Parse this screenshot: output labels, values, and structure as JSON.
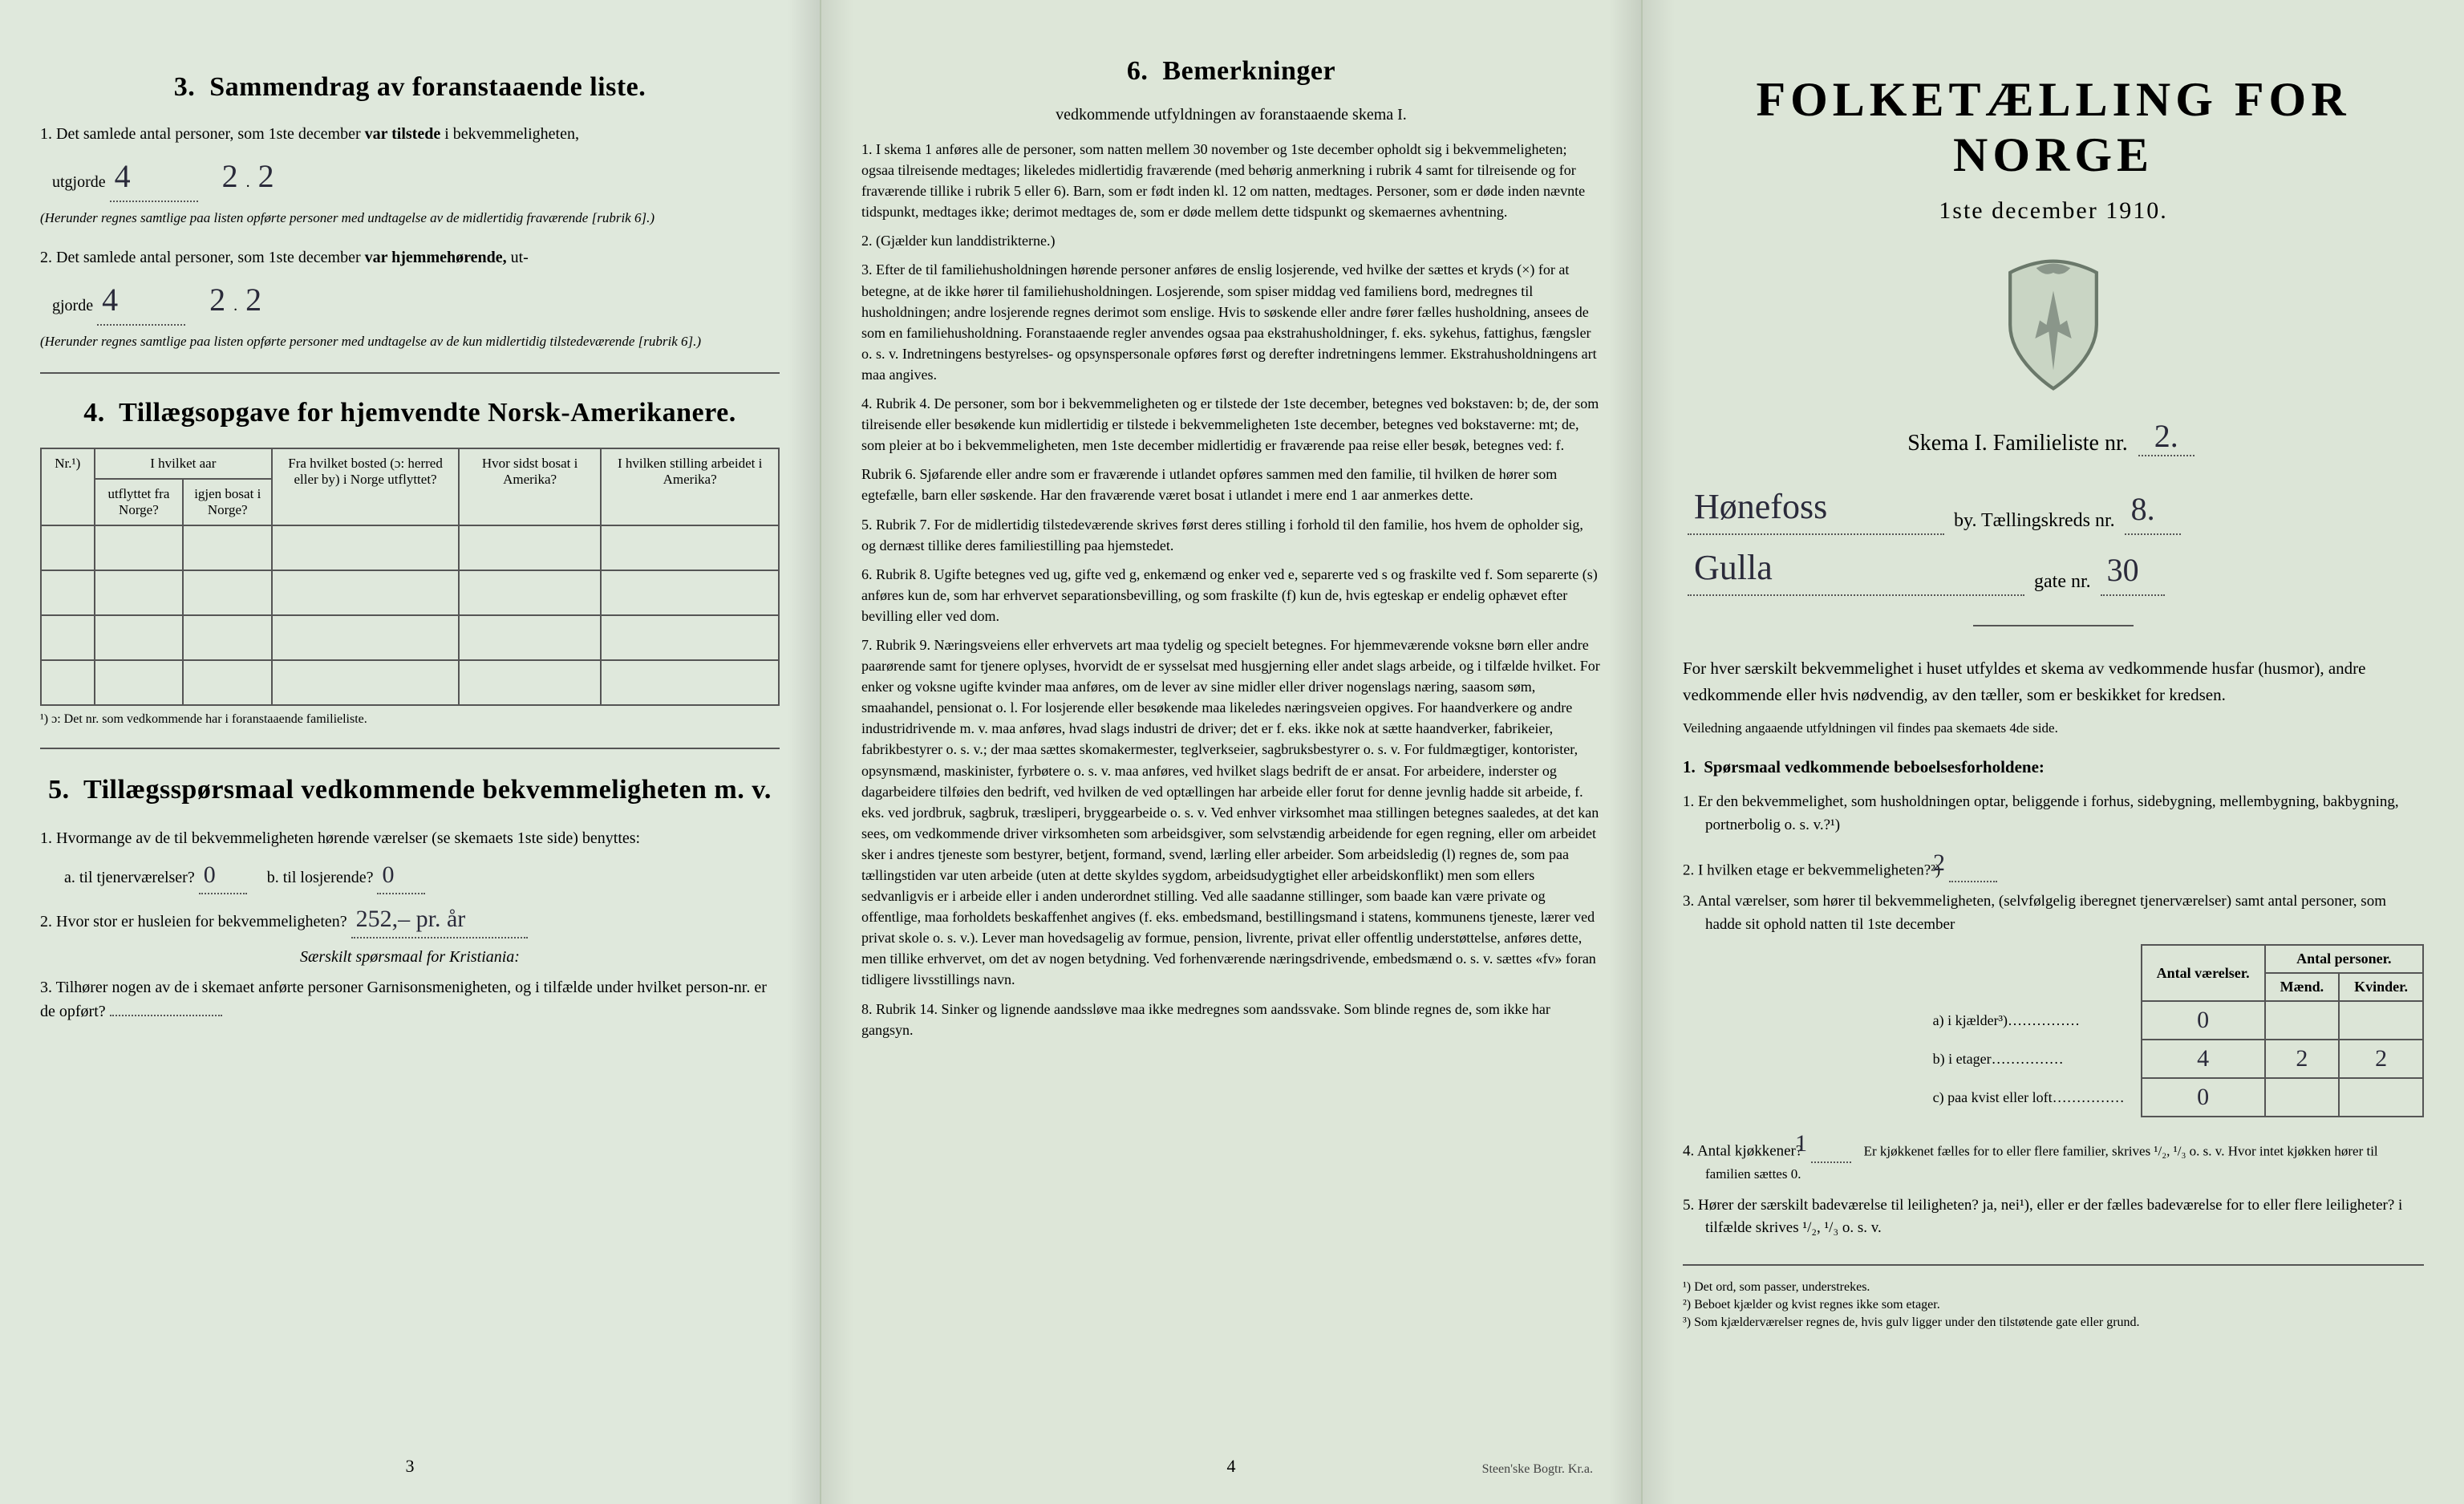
{
  "colors": {
    "paper": "#dfe8dc",
    "ink": "#222222",
    "rule": "#555555",
    "handwriting": "#2a2a3a",
    "fold_shadow": "rgba(0,0,0,0.09)"
  },
  "typography": {
    "body_pt": 20,
    "small_pt": 17,
    "tiny_pt": 15,
    "section_heading_pt": 34,
    "right_title_pt": 60,
    "right_subtitle_pt": 30,
    "hand_pt": 40
  },
  "left": {
    "section3": {
      "num": "3.",
      "title": "Sammendrag av foranstaaende liste.",
      "q1_pre": "1.  Det samlede antal personer, som 1ste december",
      "q1_bold": "var tilstede",
      "q1_post": "i bekvemmeligheten,",
      "q1_line2": "utgjorde",
      "q1_total_hand": "4",
      "q1_m_hand": "2",
      "q1_k_hand": "2",
      "q1_note": "(Herunder regnes samtlige paa listen opførte personer med undtagelse av de midlertidig fraværende [rubrik 6].)",
      "q2_pre": "2.  Det samlede antal personer, som 1ste december",
      "q2_bold": "var hjemmehørende,",
      "q2_post": "ut-",
      "q2_line2": "gjorde",
      "q2_total_hand": "4",
      "q2_m_hand": "2",
      "q2_k_hand": "2",
      "q2_note": "(Herunder regnes samtlige paa listen opførte personer med undtagelse av de kun midlertidig tilstedeværende [rubrik 6].)"
    },
    "section4": {
      "num": "4.",
      "title": "Tillægsopgave for hjemvendte Norsk-Amerikanere.",
      "headers": {
        "nr": "Nr.¹)",
        "col1a": "I hvilket aar",
        "col1a_sub1": "utflyttet fra Norge?",
        "col1a_sub2": "igjen bosat i Norge?",
        "col2": "Fra hvilket bosted (ɔ: herred eller by) i Norge utflyttet?",
        "col3": "Hvor sidst bosat i Amerika?",
        "col4": "I hvilken stilling arbeidet i Amerika?"
      },
      "blank_rows": 4,
      "footnote": "¹) ɔ: Det nr. som vedkommende har i foranstaaende familieliste."
    },
    "section5": {
      "num": "5.",
      "title": "Tillægsspørsmaal vedkommende bekvemmeligheten m. v.",
      "q1": "1.  Hvormange av de til bekvemmeligheten hørende værelser (se skemaets 1ste side) benyttes:",
      "q1a_label": "a.  til tjenerværelser?",
      "q1a_hand": "0",
      "q1b_label": "b.  til losjerende?",
      "q1b_hand": "0",
      "q2_label": "2.  Hvor stor er husleien for bekvemmeligheten?",
      "q2_hand": "252,– pr. år",
      "kristiania": "Særskilt spørsmaal for Kristiania:",
      "q3": "3.  Tilhører nogen av de i skemaet anførte personer Garnisonsmenigheten, og i tilfælde under hvilket person-nr. er de opført?"
    },
    "pagenum": "3"
  },
  "mid": {
    "heading_num": "6.",
    "heading": "Bemerkninger",
    "subcaption": "vedkommende utfyldningen av foranstaaende skema I.",
    "items": [
      "1.  I skema 1 anføres alle de personer, som natten mellem 30 november og 1ste december opholdt sig i bekvemmeligheten; ogsaa tilreisende medtages; likeledes midlertidig fraværende (med behørig anmerkning i rubrik 4 samt for tilreisende og for fraværende tillike i rubrik 5 eller 6). Barn, som er født inden kl. 12 om natten, medtages. Personer, som er døde inden nævnte tidspunkt, medtages ikke; derimot medtages de, som er døde mellem dette tidspunkt og skemaernes avhentning.",
      "2.  (Gjælder kun landdistrikterne.)",
      "3.  Efter de til familiehusholdningen hørende personer anføres de enslig losjerende, ved hvilke der sættes et kryds (×) for at betegne, at de ikke hører til familiehusholdningen. Losjerende, som spiser middag ved familiens bord, medregnes til husholdningen; andre losjerende regnes derimot som enslige. Hvis to søskende eller andre fører fælles husholdning, ansees de som en familiehusholdning.    Foranstaaende regler anvendes ogsaa paa ekstrahusholdninger, f. eks. sykehus, fattighus, fængsler o. s. v. Indretningens bestyrelses- og opsynspersonale opføres først og derefter indretningens lemmer. Ekstrahusholdningens art maa angives.",
      "4.  Rubrik 4.  De personer, som bor i bekvemmeligheten og er tilstede der 1ste december, betegnes ved bokstaven: b; de, der som tilreisende eller besøkende kun midlertidig er tilstede i bekvemmeligheten 1ste december, betegnes ved bokstaverne: mt; de, som pleier at bo i bekvemmeligheten, men 1ste december midlertidig er fraværende paa reise eller besøk, betegnes ved: f.",
      "Rubrik 6.  Sjøfarende eller andre som er fraværende i utlandet opføres sammen med den familie, til hvilken de hører som egtefælle, barn eller søskende.    Har den fraværende været bosat i utlandet i mere end 1 aar anmerkes dette.",
      "5.  Rubrik 7.  For de midlertidig tilstedeværende skrives først deres stilling i forhold til den familie, hos hvem de opholder sig, og dernæst tillike deres familiestilling paa hjemstedet.",
      "6.  Rubrik 8.  Ugifte betegnes ved ug, gifte ved g, enkemænd og enker ved e, separerte ved s og fraskilte ved f. Som separerte (s) anføres kun de, som har erhvervet separationsbevilling, og som fraskilte (f) kun de, hvis egteskap er endelig ophævet efter bevilling eller ved dom.",
      "7.  Rubrik 9.  Næringsveiens eller erhvervets art maa tydelig og specielt betegnes.    For hjemmeværende voksne børn eller andre paarørende samt for tjenere oplyses, hvorvidt de er sysselsat med husgjerning eller andet slags arbeide, og i tilfælde hvilket. For enker og voksne ugifte kvinder maa anføres, om de lever av sine midler eller driver nogenslags næring, saasom søm, smaahandel, pensionat o. l.    For losjerende eller besøkende maa likeledes næringsveien opgives.    For haandverkere og andre industridrivende m. v. maa anføres, hvad slags industri de driver; det er f. eks. ikke nok at sætte haandverker, fabrikeier, fabrikbestyrer o. s. v.; der maa sættes skomakermester, teglverkseier, sagbruksbestyrer o. s. v.    For fuldmægtiger, kontorister, opsynsmænd, maskinister, fyrbøtere o. s. v. maa anføres, ved hvilket slags bedrift de er ansat.    For arbeidere, inderster og dagarbeidere tilføies den bedrift, ved hvilken de ved optællingen har arbeide eller forut for denne jevnlig hadde sit arbeide, f. eks. ved jordbruk, sagbruk, træsliperi, bryggearbeide o. s. v.    Ved enhver virksomhet maa stillingen betegnes saaledes, at det kan sees, om vedkommende driver virksomheten som arbeidsgiver, som selvstændig arbeidende for egen regning, eller om arbeidet sker i andres tjeneste som bestyrer, betjent, formand, svend, lærling eller arbeider.    Som arbeidsledig (l) regnes de, som paa tællingstiden var uten arbeide (uten at dette skyldes sygdom, arbeidsudygtighet eller arbeidskonflikt) men som ellers sedvanligvis er i arbeide eller i anden underordnet stilling.    Ved alle saadanne stillinger, som baade kan være private og offentlige, maa forholdets beskaffenhet angives (f. eks. embedsmand, bestillingsmand i statens, kommunens tjeneste, lærer ved privat skole o. s. v.).    Lever man hovedsagelig av formue, pension, livrente, privat eller offentlig understøttelse, anføres dette, men tillike erhvervet, om det av nogen betydning.    Ved forhenværende næringsdrivende, embedsmænd o. s. v. sættes «fv» foran tidligere livsstillings navn.",
      "8.  Rubrik 14.  Sinker og lignende aandssløve maa ikke medregnes som aandssvake.    Som blinde regnes de, som ikke har gangsyn."
    ],
    "pagenum": "4",
    "printer": "Steen'ske Bogtr. Kr.a."
  },
  "right": {
    "title": "FOLKETÆLLING FOR NORGE",
    "subtitle": "1ste december 1910.",
    "skema_label": "Skema I.   Familieliste nr.",
    "familieliste_nr_hand": "2.",
    "by_hand": "Hønefoss",
    "by_label": "by.  Tællingskreds nr.",
    "kreds_nr_hand": "8.",
    "gate_hand": "Gulla",
    "gate_label": "gate nr.",
    "gate_nr_hand": "30",
    "intro": "For hver særskilt bekvemmelighet i huset utfyldes et skema av vedkommende husfar (husmor), andre vedkommende eller hvis nødvendig, av den tæller, som er beskikket for kredsen.",
    "intro_sub": "Veiledning angaaende utfyldningen vil findes paa skemaets 4de side.",
    "q_heading_num": "1.",
    "q_heading": "Spørsmaal vedkommende beboelsesforholdene:",
    "q1": "1.  Er den bekvemmelighet, som husholdningen optar, beliggende i forhus, sidebygning, mellembygning, bakbygning, portnerbolig o. s. v.?¹)",
    "q2_label": "2.  I hvilken etage er bekvemmeligheten?²)",
    "q2_hand": "2",
    "q3": "3.  Antal værelser, som hører til bekvemmeligheten, (selvfølgelig iberegnet tjenerværelser) samt antal personer, som hadde sit ophold natten til 1ste december",
    "table": {
      "headers": {
        "vaer": "Antal værelser.",
        "pers": "Antal personer.",
        "m": "Mænd.",
        "k": "Kvinder."
      },
      "rows": [
        {
          "label": "a) i kjælder³)",
          "vaer": "0",
          "m": "",
          "k": ""
        },
        {
          "label": "b) i etager",
          "vaer": "4",
          "m": "2",
          "k": "2"
        },
        {
          "label": "c) paa kvist eller loft",
          "vaer": "0",
          "m": "",
          "k": ""
        }
      ]
    },
    "q4_pre": "4.  Antal kjøkkener?",
    "q4_hand": "1",
    "q4_post": "Er kjøkkenet fælles for to eller flere familier, skrives ¹/₂, ¹/₃ o. s. v.  Hvor intet kjøkken hører til familien sættes 0.",
    "q5": "5.  Hører der særskilt badeværelse til leiligheten?  ja,  nei¹), eller er der fælles badeværelse for to eller flere leiligheter?  i tilfælde skrives ¹/₂, ¹/₃ o. s. v.",
    "q5_hand_mark": "nei",
    "notes": [
      "¹)  Det ord, som passer, understrekes.",
      "²)  Beboet kjælder og kvist regnes ikke som etager.",
      "³)  Som kjælderværelser regnes de, hvis gulv ligger under den tilstøtende gate eller grund."
    ]
  }
}
